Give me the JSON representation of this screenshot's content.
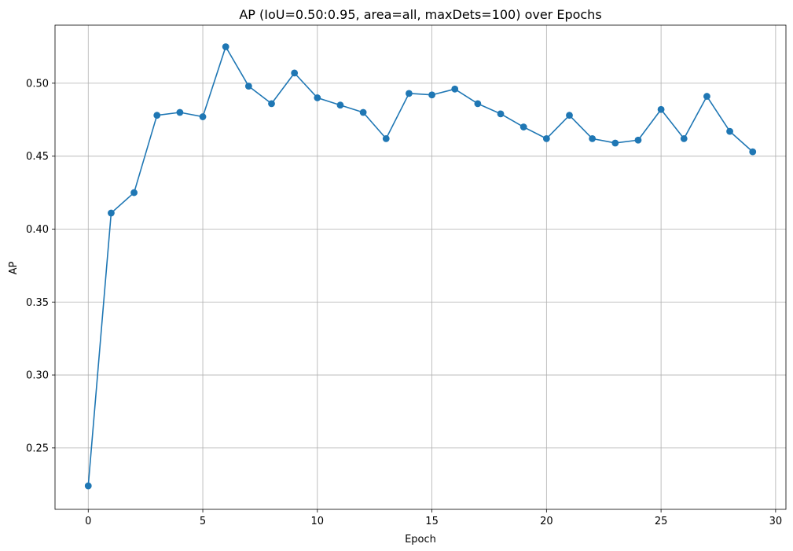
{
  "chart_data": {
    "type": "line",
    "title": "AP (IoU=0.50:0.95, area=all, maxDets=100) over Epochs",
    "xlabel": "Epoch",
    "ylabel": "AP",
    "xlim": [
      -1.45,
      30.45
    ],
    "ylim": [
      0.2079,
      0.5398
    ],
    "xticks": [
      0,
      5,
      10,
      15,
      20,
      25,
      30
    ],
    "yticks": [
      0.25,
      0.3,
      0.35,
      0.4,
      0.45,
      0.5
    ],
    "xtick_labels": [
      "0",
      "5",
      "10",
      "15",
      "20",
      "25",
      "30"
    ],
    "ytick_labels": [
      "0.25",
      "0.30",
      "0.35",
      "0.40",
      "0.45",
      "0.50"
    ],
    "grid": true,
    "marker": "circle",
    "color": "#1f77b4",
    "series": [
      {
        "x": [
          0,
          1,
          2,
          3,
          4,
          5,
          6,
          7,
          8,
          9,
          10,
          11,
          12,
          13,
          14,
          15,
          16,
          17,
          18,
          19,
          20,
          21,
          22,
          23,
          24,
          25,
          26,
          27,
          28,
          29
        ],
        "values": [
          0.224,
          0.411,
          0.425,
          0.478,
          0.48,
          0.477,
          0.525,
          0.498,
          0.486,
          0.507,
          0.49,
          0.485,
          0.48,
          0.462,
          0.493,
          0.492,
          0.496,
          0.486,
          0.479,
          0.47,
          0.462,
          0.478,
          0.462,
          0.459,
          0.461,
          0.482,
          0.462,
          0.491,
          0.467,
          0.453
        ]
      }
    ]
  }
}
